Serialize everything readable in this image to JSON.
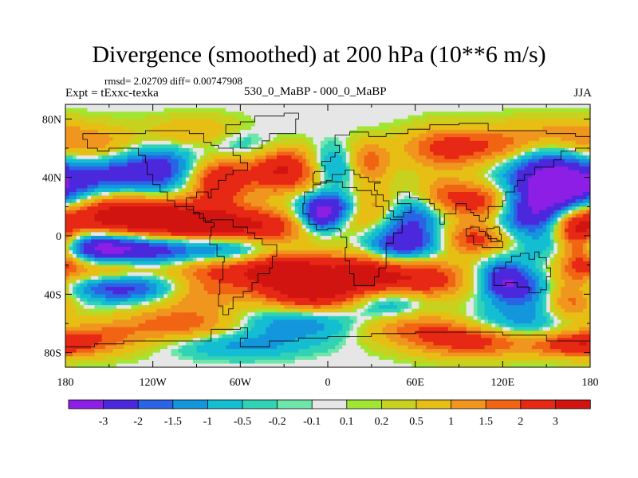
{
  "chart_data": {
    "type": "heatmap",
    "title": "Divergence (smoothed) at 200 hPa (10**6 m/s)",
    "stats": "rmsd= 2.02709 diff= 0.00747908",
    "expt": "Expt = tExxc-texka",
    "period": "530_0_MaBP - 000_0_MaBP",
    "season": "JJA",
    "xlim": [
      -180,
      180
    ],
    "ylim": [
      -90,
      90
    ],
    "x_ticks": [
      {
        "value": -180,
        "label": "180"
      },
      {
        "value": -120,
        "label": "120W"
      },
      {
        "value": -60,
        "label": "60W"
      },
      {
        "value": 0,
        "label": "0"
      },
      {
        "value": 60,
        "label": "60E"
      },
      {
        "value": 120,
        "label": "120E"
      },
      {
        "value": 180,
        "label": "180"
      }
    ],
    "y_ticks": [
      {
        "value": 80,
        "label": "80N"
      },
      {
        "value": 40,
        "label": "40N"
      },
      {
        "value": 0,
        "label": "0"
      },
      {
        "value": -40,
        "label": "40S"
      },
      {
        "value": -80,
        "label": "80S"
      }
    ],
    "colorbar": {
      "levels": [
        "-3",
        "-2",
        "-1.5",
        "-1",
        "-0.5",
        "-0.2",
        "-0.1",
        "0.1",
        "0.2",
        "0.5",
        "1",
        "1.5",
        "2",
        "3"
      ],
      "colors": [
        "#8c1ee6",
        "#4b28dc",
        "#2a64e6",
        "#1496dc",
        "#14bed2",
        "#32d2b4",
        "#6ee6aa",
        "#e6e6e6",
        "#a0e632",
        "#c8d21e",
        "#e6be14",
        "#f0961e",
        "#f06414",
        "#e62814",
        "#d21410"
      ]
    }
  }
}
